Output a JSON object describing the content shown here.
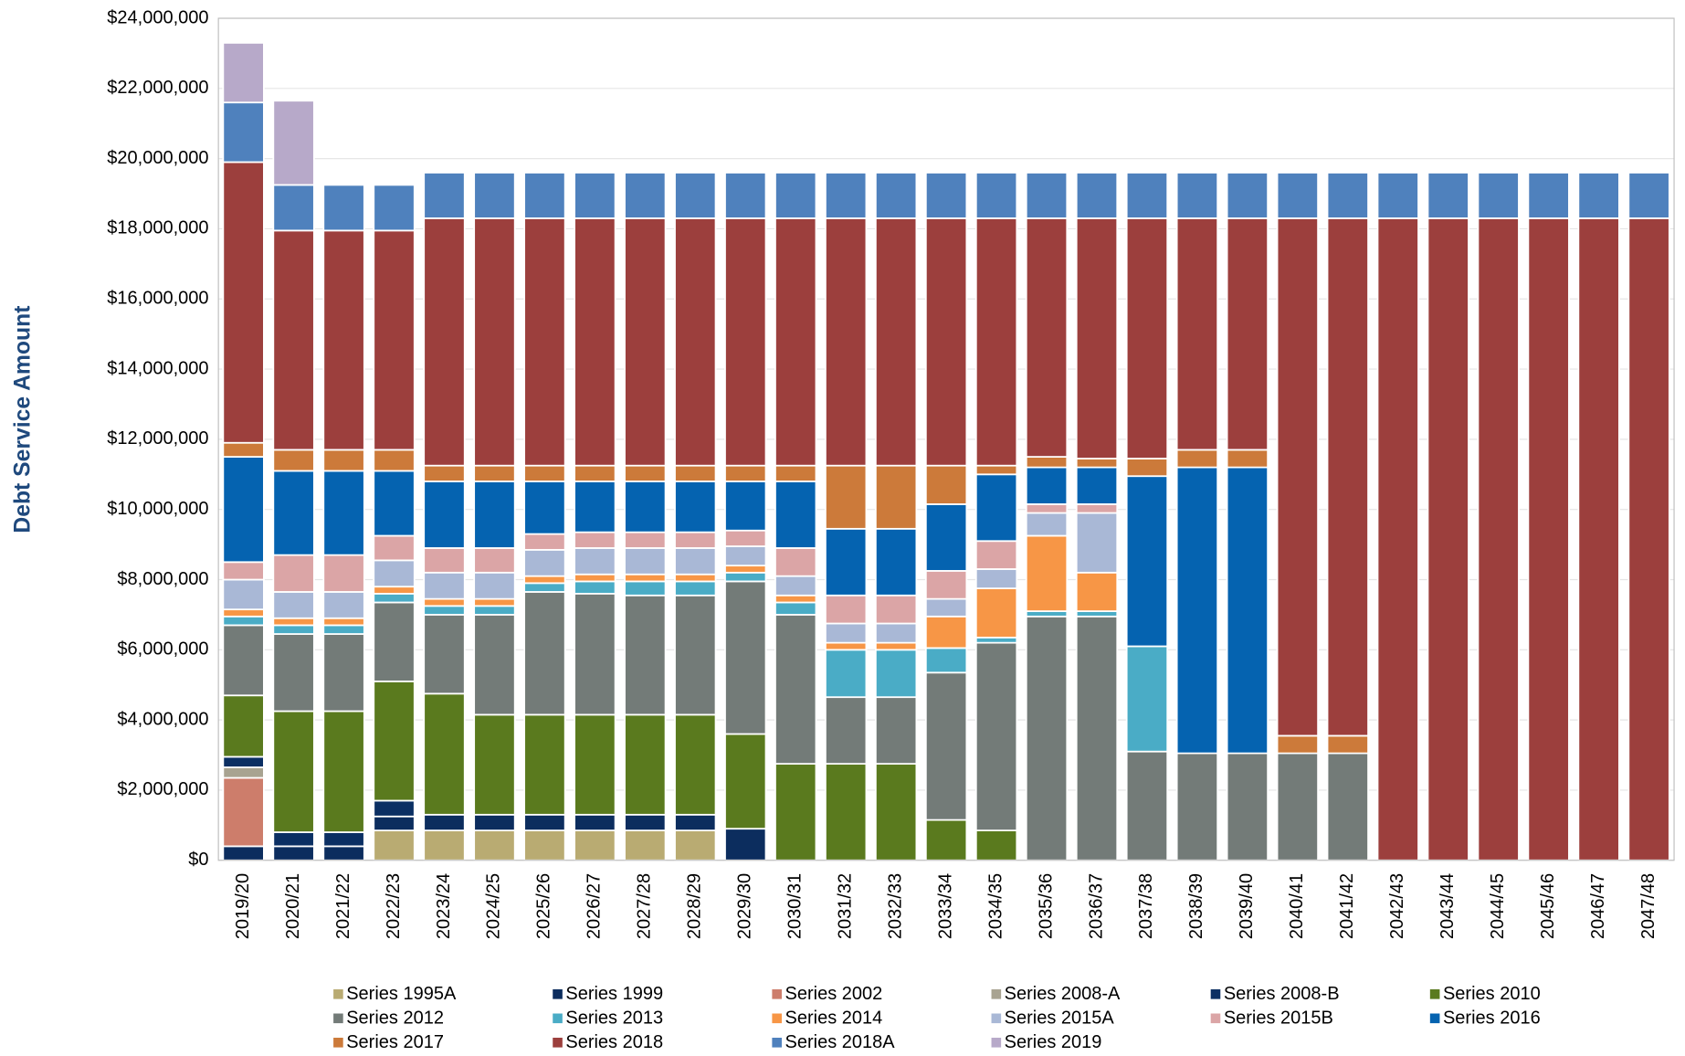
{
  "chart_data": {
    "type": "stacked_bar",
    "y_label": "Debt Service Amount",
    "categories": [
      "2019/20",
      "2020/21",
      "2021/22",
      "2022/23",
      "2023/24",
      "2024/25",
      "2025/26",
      "2026/27",
      "2027/28",
      "2028/29",
      "2029/30",
      "2030/31",
      "2031/32",
      "2032/33",
      "2033/34",
      "2034/35",
      "2035/36",
      "2036/37",
      "2037/38",
      "2038/39",
      "2039/40",
      "2040/41",
      "2041/42",
      "2042/43",
      "2043/44",
      "2044/45",
      "2045/46",
      "2046/47",
      "2047/48"
    ],
    "ylim": [
      0,
      24000000
    ],
    "yticks": [
      {
        "value": 0,
        "label": "$0"
      },
      {
        "value": 2000000,
        "label": "$2,000,000"
      },
      {
        "value": 4000000,
        "label": "$4,000,000"
      },
      {
        "value": 6000000,
        "label": "$6,000,000"
      },
      {
        "value": 8000000,
        "label": "$8,000,000"
      },
      {
        "value": 10000000,
        "label": "$10,000,000"
      },
      {
        "value": 12000000,
        "label": "$12,000,000"
      },
      {
        "value": 14000000,
        "label": "$14,000,000"
      },
      {
        "value": 16000000,
        "label": "$16,000,000"
      },
      {
        "value": 18000000,
        "label": "$18,000,000"
      },
      {
        "value": 20000000,
        "label": "$20,000,000"
      },
      {
        "value": 22000000,
        "label": "$22,000,000"
      },
      {
        "value": 24000000,
        "label": "$24,000,000"
      }
    ],
    "grid": true,
    "legend": "bottom",
    "series": [
      {
        "name": "Series 1995A",
        "color": "#b9ab72",
        "values": [
          0,
          0,
          0,
          850000,
          850000,
          850000,
          850000,
          850000,
          850000,
          850000,
          0,
          0,
          0,
          0,
          0,
          0,
          0,
          0,
          0,
          0,
          0,
          0,
          0,
          0,
          0,
          0,
          0,
          0,
          0
        ]
      },
      {
        "name": "Series 1999",
        "color": "#0c2d5e",
        "values": [
          400000,
          400000,
          400000,
          400000,
          450000,
          450000,
          450000,
          450000,
          450000,
          450000,
          900000,
          0,
          0,
          0,
          0,
          0,
          0,
          0,
          0,
          0,
          0,
          0,
          0,
          0,
          0,
          0,
          0,
          0,
          0
        ]
      },
      {
        "name": "Series 2002",
        "color": "#cd7d6b",
        "values": [
          1950000,
          0,
          0,
          0,
          0,
          0,
          0,
          0,
          0,
          0,
          0,
          0,
          0,
          0,
          0,
          0,
          0,
          0,
          0,
          0,
          0,
          0,
          0,
          0,
          0,
          0,
          0,
          0,
          0
        ]
      },
      {
        "name": "Series 2008-A",
        "color": "#a8a391",
        "values": [
          300000,
          0,
          0,
          0,
          0,
          0,
          0,
          0,
          0,
          0,
          0,
          0,
          0,
          0,
          0,
          0,
          0,
          0,
          0,
          0,
          0,
          0,
          0,
          0,
          0,
          0,
          0,
          0,
          0
        ]
      },
      {
        "name": "Series 2008-B",
        "color": "#0b2f63",
        "values": [
          300000,
          400000,
          400000,
          450000,
          0,
          0,
          0,
          0,
          0,
          0,
          0,
          0,
          0,
          0,
          0,
          0,
          0,
          0,
          0,
          0,
          0,
          0,
          0,
          0,
          0,
          0,
          0,
          0,
          0
        ]
      },
      {
        "name": "Series 2010",
        "color": "#5a7a1e",
        "values": [
          1750000,
          3450000,
          3450000,
          3400000,
          3450000,
          2850000,
          2850000,
          2850000,
          2850000,
          2850000,
          2700000,
          2750000,
          2750000,
          2750000,
          1150000,
          850000,
          0,
          0,
          0,
          0,
          0,
          0,
          0,
          0,
          0,
          0,
          0,
          0,
          0
        ]
      },
      {
        "name": "Series 2012",
        "color": "#737b78",
        "values": [
          2000000,
          2200000,
          2200000,
          2250000,
          2250000,
          2850000,
          3500000,
          3450000,
          3400000,
          3400000,
          4350000,
          4250000,
          1900000,
          1900000,
          4200000,
          5350000,
          6950000,
          6950000,
          3100000,
          3050000,
          3050000,
          3050000,
          3050000,
          0,
          0,
          0,
          0,
          0,
          0
        ]
      },
      {
        "name": "Series 2013",
        "color": "#4aacc6",
        "values": [
          250000,
          250000,
          250000,
          250000,
          250000,
          250000,
          250000,
          350000,
          400000,
          400000,
          250000,
          350000,
          1350000,
          1350000,
          700000,
          150000,
          150000,
          150000,
          3000000,
          0,
          0,
          0,
          0,
          0,
          0,
          0,
          0,
          0,
          0
        ]
      },
      {
        "name": "Series 2014",
        "color": "#f79646",
        "values": [
          200000,
          200000,
          200000,
          200000,
          200000,
          200000,
          200000,
          200000,
          200000,
          200000,
          200000,
          200000,
          200000,
          200000,
          900000,
          1400000,
          2150000,
          1100000,
          0,
          0,
          0,
          0,
          0,
          0,
          0,
          0,
          0,
          0,
          0
        ]
      },
      {
        "name": "Series 2015A",
        "color": "#a9b8d6",
        "values": [
          850000,
          750000,
          750000,
          750000,
          750000,
          750000,
          750000,
          750000,
          750000,
          750000,
          550000,
          550000,
          550000,
          550000,
          500000,
          550000,
          650000,
          1700000,
          0,
          0,
          0,
          0,
          0,
          0,
          0,
          0,
          0,
          0,
          0
        ]
      },
      {
        "name": "Series 2015B",
        "color": "#dba5a6",
        "values": [
          500000,
          1050000,
          1050000,
          700000,
          700000,
          700000,
          450000,
          450000,
          450000,
          450000,
          450000,
          800000,
          800000,
          800000,
          800000,
          800000,
          250000,
          250000,
          0,
          0,
          0,
          0,
          0,
          0,
          0,
          0,
          0,
          0,
          0
        ]
      },
      {
        "name": "Series 2016",
        "color": "#0563b0",
        "values": [
          3000000,
          2400000,
          2400000,
          1850000,
          1900000,
          1900000,
          1500000,
          1450000,
          1450000,
          1450000,
          1400000,
          1900000,
          1900000,
          1900000,
          1900000,
          1900000,
          1050000,
          1050000,
          4850000,
          8150000,
          8150000,
          0,
          0,
          0,
          0,
          0,
          0,
          0,
          0
        ]
      },
      {
        "name": "Series 2017",
        "color": "#cc7a3a",
        "values": [
          400000,
          600000,
          600000,
          600000,
          450000,
          450000,
          450000,
          450000,
          450000,
          450000,
          450000,
          450000,
          1800000,
          1800000,
          1100000,
          250000,
          300000,
          250000,
          500000,
          500000,
          500000,
          500000,
          500000,
          0,
          0,
          0,
          0,
          0,
          0
        ]
      },
      {
        "name": "Series 2018",
        "color": "#9c3f3d",
        "values": [
          8000000,
          6250000,
          6250000,
          6250000,
          7050000,
          7050000,
          7050000,
          7050000,
          7050000,
          7050000,
          7050000,
          7050000,
          7050000,
          7050000,
          7050000,
          7050000,
          6800000,
          6850000,
          6850000,
          6600000,
          6600000,
          14750000,
          14750000,
          18300000,
          18300000,
          18300000,
          18300000,
          18300000,
          18300000
        ]
      },
      {
        "name": "Series 2018A",
        "color": "#4f81bd",
        "values": [
          1700000,
          1300000,
          1300000,
          1300000,
          1300000,
          1300000,
          1300000,
          1300000,
          1300000,
          1300000,
          1300000,
          1300000,
          1300000,
          1300000,
          1300000,
          1300000,
          1300000,
          1300000,
          1300000,
          1300000,
          1300000,
          1300000,
          1300000,
          1300000,
          1300000,
          1300000,
          1300000,
          1300000,
          1300000
        ]
      },
      {
        "name": "Series 2019",
        "color": "#b7a9c9",
        "values": [
          1700000,
          2400000,
          0,
          0,
          0,
          0,
          0,
          0,
          0,
          0,
          0,
          0,
          0,
          0,
          0,
          0,
          0,
          0,
          0,
          0,
          0,
          0,
          0,
          0,
          0,
          0,
          0,
          0,
          0
        ]
      }
    ]
  }
}
